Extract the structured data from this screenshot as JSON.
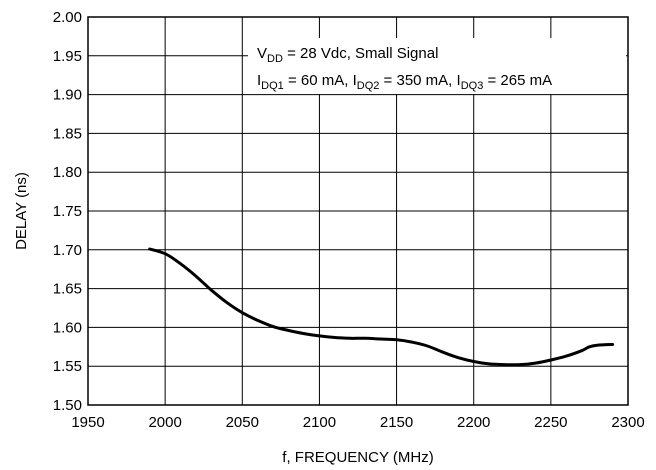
{
  "chart_data": {
    "type": "line",
    "xlabel": "f, FREQUENCY (MHz)",
    "ylabel": "DELAY (ns)",
    "xlim": [
      1950,
      2300
    ],
    "ylim": [
      1.5,
      2.0
    ],
    "xticks": [
      "1950",
      "2000",
      "2050",
      "2100",
      "2150",
      "2200",
      "2250",
      "2300"
    ],
    "yticks": [
      "1.50",
      "1.55",
      "1.60",
      "1.65",
      "1.70",
      "1.75",
      "1.80",
      "1.85",
      "1.90",
      "1.95",
      "2.00"
    ],
    "grid": true,
    "annotation": {
      "line1": {
        "prefix": "V",
        "sub": "DD",
        "rest": " = 28 Vdc, Small Signal"
      },
      "line2": {
        "p1": "I",
        "s1": "DQ1",
        "t1": " = 60 mA, ",
        "p2": "I",
        "s2": "DQ2",
        "t2": " = 350 mA, ",
        "p3": "I",
        "s3": "DQ3",
        "t3": " = 265 mA"
      }
    },
    "series": [
      {
        "x": [
          1990,
          2000,
          2010,
          2020,
          2030,
          2040,
          2050,
          2060,
          2070,
          2080,
          2090,
          2100,
          2110,
          2120,
          2130,
          2140,
          2150,
          2160,
          2170,
          2180,
          2190,
          2200,
          2210,
          2220,
          2230,
          2240,
          2250,
          2260,
          2270,
          2275,
          2280,
          2290
        ],
        "y": [
          1.701,
          1.695,
          1.682,
          1.666,
          1.648,
          1.632,
          1.619,
          1.609,
          1.601,
          1.596,
          1.592,
          1.589,
          1.587,
          1.586,
          1.586,
          1.585,
          1.584,
          1.581,
          1.576,
          1.568,
          1.561,
          1.556,
          1.553,
          1.552,
          1.552,
          1.554,
          1.558,
          1.563,
          1.57,
          1.575,
          1.577,
          1.578
        ]
      }
    ]
  }
}
